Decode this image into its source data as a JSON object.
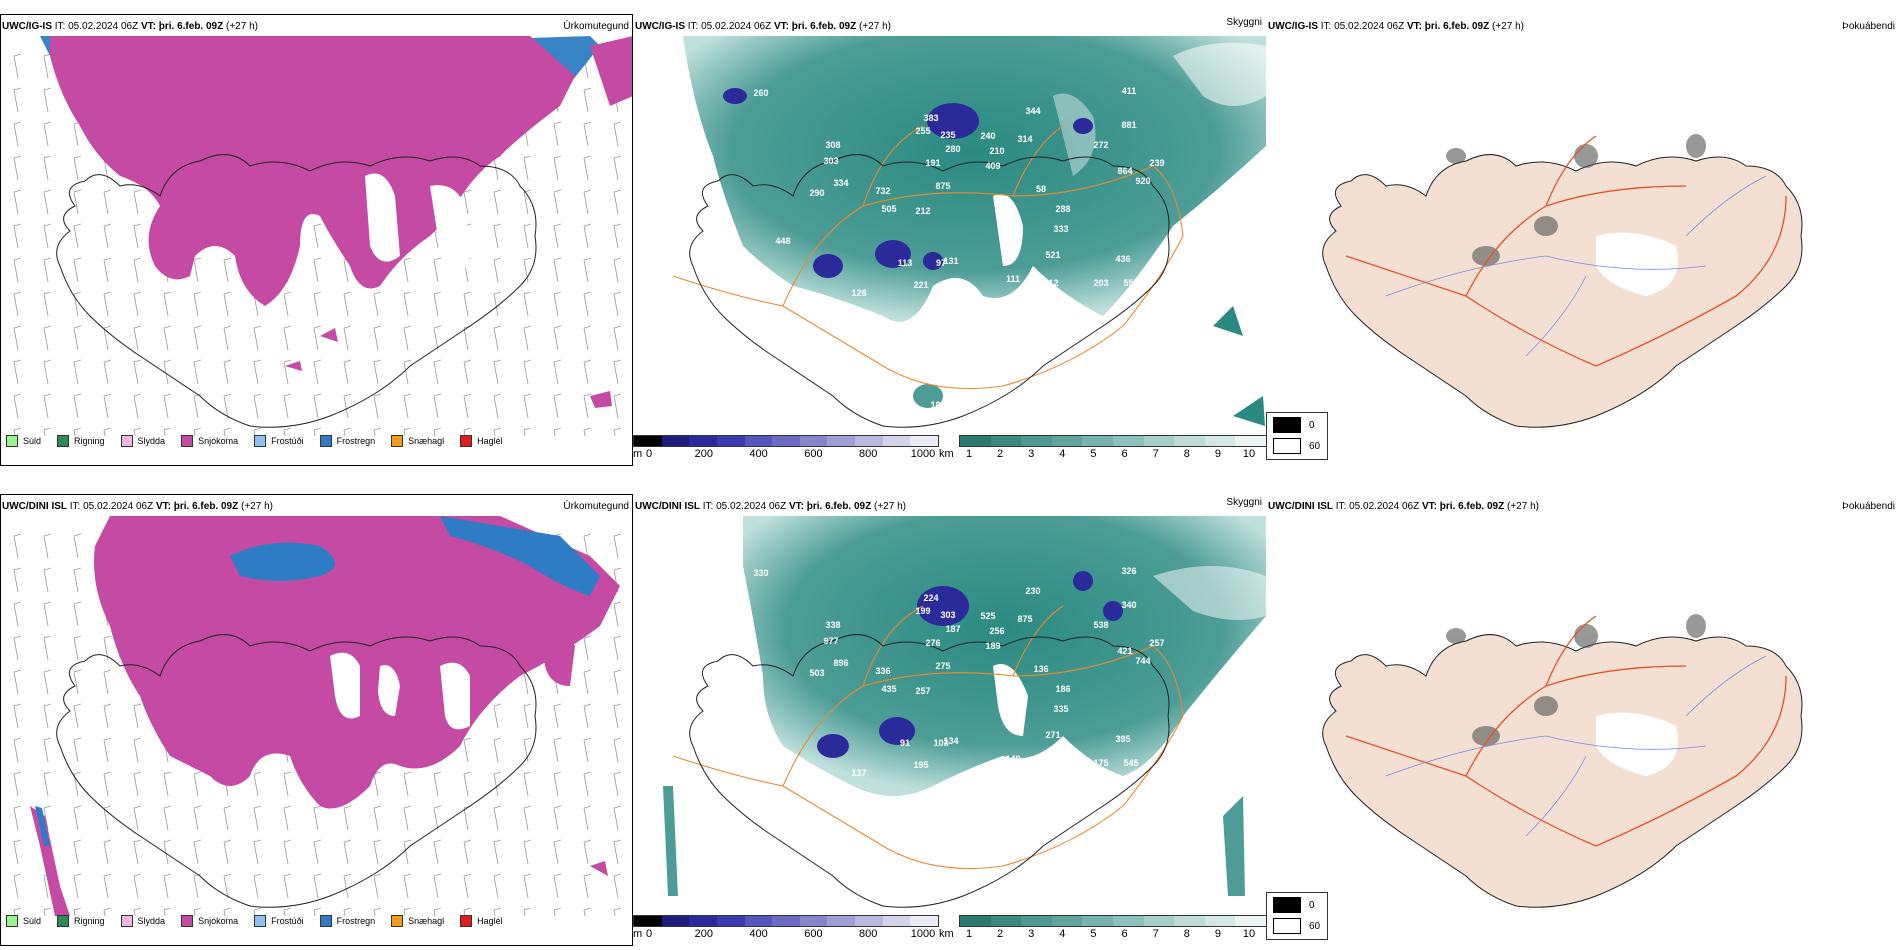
{
  "panels": [
    {
      "row": 0,
      "model": "UWC/IG-IS",
      "it_label": "IT:",
      "it_value": "05.02.2024 06Z",
      "vt_label": "VT:",
      "vt_value": "þri. 6.feb. 09Z",
      "lead": "(+27 h)",
      "titles": [
        "Úrkomutegund",
        "Skyggni",
        "Þokuábendi"
      ],
      "cloud_labels": [
        "260",
        "308",
        "303",
        "334",
        "290",
        "732",
        "505",
        "212",
        "875",
        "409",
        "280",
        "191",
        "255",
        "235",
        "383",
        "240",
        "210",
        "344",
        "314",
        "411",
        "881",
        "272",
        "864",
        "239",
        "920",
        "58",
        "288",
        "333",
        "521",
        "436",
        "559",
        "203",
        "312",
        "111",
        "97",
        "221",
        "131",
        "113",
        "128",
        "448",
        "180"
      ]
    },
    {
      "row": 1,
      "model": "UWC/DINI ISL",
      "it_label": "IT:",
      "it_value": "05.02.2024 06Z",
      "vt_label": "VT:",
      "vt_value": "þri. 6.feb. 09Z",
      "lead": "(+27 h)",
      "titles": [
        "Úrkomutegund",
        "Skyggni",
        "Þokuábendi"
      ],
      "cloud_labels": [
        "330",
        "338",
        "977",
        "896",
        "503",
        "336",
        "435",
        "257",
        "275",
        "189",
        "187",
        "276",
        "199",
        "303",
        "224",
        "525",
        "256",
        "230",
        "875",
        "326",
        "340",
        "538",
        "421",
        "257",
        "744",
        "136",
        "186",
        "335",
        "271",
        "395",
        "545",
        "175",
        "278",
        "149",
        "103",
        "195",
        "134",
        "91",
        "137"
      ]
    }
  ],
  "precip_legend": [
    {
      "label": "Súld",
      "color": "#98f58f"
    },
    {
      "label": "Rigning",
      "color": "#2e8b57"
    },
    {
      "label": "Slydda",
      "color": "#f3b6e0"
    },
    {
      "label": "Snjókoma",
      "color": "#c44aa3"
    },
    {
      "label": "Frostúði",
      "color": "#8ec2f2"
    },
    {
      "label": "Frostregn",
      "color": "#2e7dc4"
    },
    {
      "label": "Snæhagl",
      "color": "#f39a24"
    },
    {
      "label": "Haglél",
      "color": "#e51c1c"
    }
  ],
  "height_bar": {
    "unit": "m",
    "ticks": [
      "0",
      "200",
      "400",
      "600",
      "800",
      "1000"
    ],
    "colors": [
      "#000000",
      "#1e1e7a",
      "#2a2a9a",
      "#3b3bb0",
      "#5555bb",
      "#6b6bc2",
      "#8585cc",
      "#9f9fd6",
      "#b9b9e0",
      "#d3d3ec",
      "#ececf7"
    ]
  },
  "vis_bar": {
    "unit": "km",
    "ticks": [
      "1",
      "2",
      "3",
      "4",
      "5",
      "6",
      "7",
      "8",
      "9",
      "10"
    ],
    "colors": [
      "#2a7a70",
      "#3a8a80",
      "#4d9890",
      "#62a59e",
      "#78b3ad",
      "#8fc1bc",
      "#a6cfca",
      "#bddcd8",
      "#d4e9e6",
      "#ecf5f3"
    ]
  },
  "fog_legend": {
    "values": [
      "0",
      "60"
    ],
    "colors": [
      "#000000",
      "#ffffff"
    ]
  },
  "colors": {
    "snow": "#c44aa3",
    "freezing_rain": "#2e7dc4",
    "teal": "#2a8a82",
    "road": "#e98a2f",
    "fog_land": "#f3e0d2",
    "fog_road": "#e5502a",
    "fog_river": "#7b8be8"
  }
}
